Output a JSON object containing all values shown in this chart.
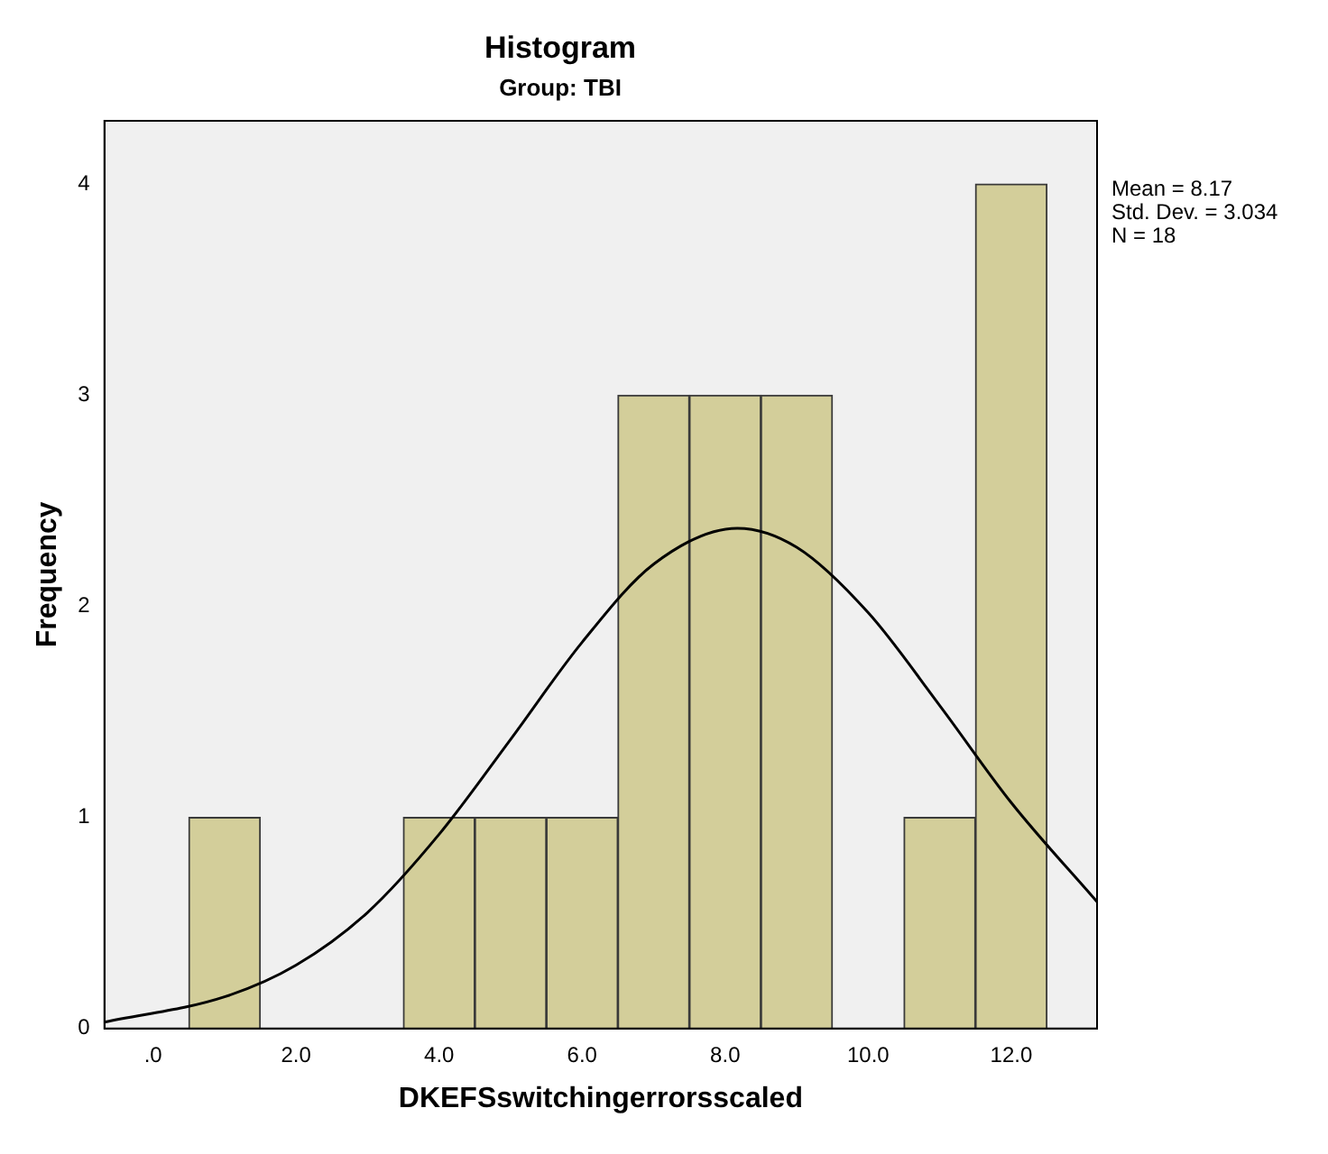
{
  "chart_data": {
    "type": "histogram",
    "title": "Histogram",
    "subtitle": "Group: TBI",
    "xlabel": "DKEFSswitchingerrorsscaled",
    "ylabel": "Frequency",
    "bins": [
      0.5,
      1.5,
      2.5,
      3.5,
      4.5,
      5.5,
      6.5,
      7.5,
      8.5,
      9.5,
      10.5,
      11.5,
      12.5
    ],
    "series": [
      {
        "type": "histogram",
        "color": "#d3ce9a",
        "values": [
          1,
          0,
          0,
          1,
          1,
          1,
          3,
          3,
          3,
          0,
          1,
          4
        ]
      },
      {
        "type": "line",
        "color": "#000000",
        "x": [
          -0.68,
          1,
          2,
          3,
          4,
          5,
          6,
          7,
          8.17,
          9,
          10,
          11,
          12,
          13.2
        ],
        "values": [
          0.03,
          0.15,
          0.3,
          0.55,
          0.92,
          1.37,
          1.83,
          2.2,
          2.37,
          2.28,
          1.97,
          1.53,
          1.07,
          0.6
        ]
      }
    ],
    "xlim": [
      -0.68,
      13.2
    ],
    "ylim": [
      0,
      4.3
    ],
    "xticks": [
      {
        "value": 0,
        "label": ".0"
      },
      {
        "value": 2,
        "label": "2.0"
      },
      {
        "value": 4,
        "label": "4.0"
      },
      {
        "value": 6,
        "label": "6.0"
      },
      {
        "value": 8,
        "label": "8.0"
      },
      {
        "value": 10,
        "label": "10.0"
      },
      {
        "value": 12,
        "label": "12.0"
      }
    ],
    "yticks": [
      0,
      1,
      2,
      3,
      4
    ],
    "grid": false,
    "legend": false,
    "marker": "none",
    "annotations": [
      "Mean = 8.17",
      "Std. Dev. = 3.034",
      "N = 18"
    ]
  }
}
